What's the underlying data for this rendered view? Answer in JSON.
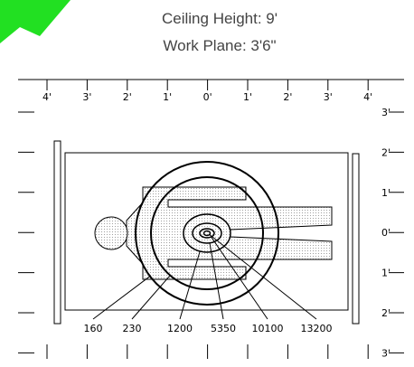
{
  "header": {
    "ceiling_height": "Ceiling Height: 9'",
    "work_plane": "Work Plane: 3'6\""
  },
  "top_axis_labels": [
    "4'",
    "3'",
    "2'",
    "1'",
    "0'",
    "1'",
    "2'",
    "3'",
    "4'"
  ],
  "right_axis_labels": [
    "3'",
    "2'",
    "1'",
    "0'",
    "1'",
    "2'",
    "3'"
  ],
  "contour_labels": [
    "160",
    "230",
    "1200",
    "5350",
    "10100",
    "13200"
  ]
}
